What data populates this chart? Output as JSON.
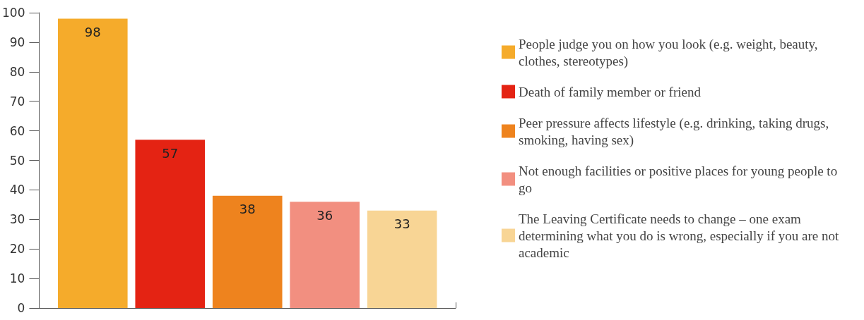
{
  "chart_data": {
    "type": "bar",
    "categories": [
      null
    ],
    "series": [
      {
        "name": "People judge you on how you look (e.g. weight, beauty, clothes, stereotypes)",
        "color": "#f5ab2b",
        "values": [
          98
        ]
      },
      {
        "name": "Death of family member or friend",
        "color": "#e42313",
        "values": [
          57
        ]
      },
      {
        "name": "Peer pressure affects lifestyle (e.g. drinking, taking drugs, smoking, having sex)",
        "color": "#ee831e",
        "values": [
          38
        ]
      },
      {
        "name": "Not enough facilities or positive places for young people to go",
        "color": "#f28f80",
        "values": [
          36
        ]
      },
      {
        "name": "The Leaving Certificate needs to change – one exam determining what you do is wrong, especially if you are not academic",
        "color": "#f8d595",
        "values": [
          33
        ]
      }
    ],
    "ylim": [
      0,
      100
    ],
    "yticks": [
      0,
      10,
      20,
      30,
      40,
      50,
      60,
      70,
      80,
      90,
      100
    ],
    "grid": false,
    "legend": "right",
    "data_labels": true
  }
}
